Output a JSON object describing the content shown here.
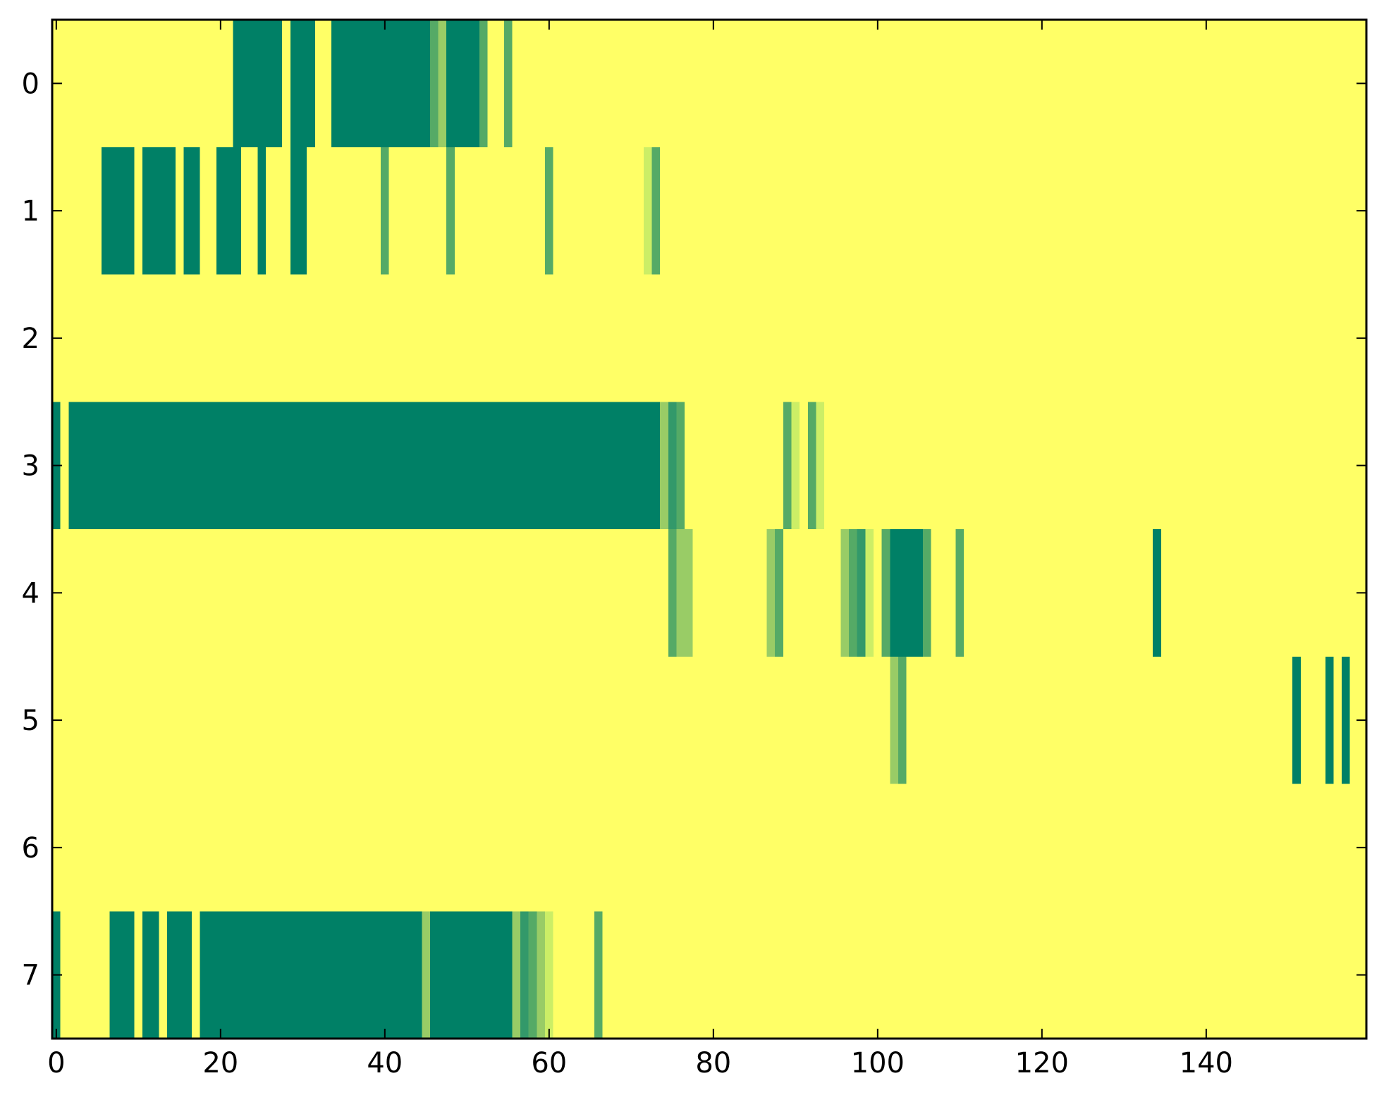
{
  "chart_data": {
    "type": "heatmap",
    "title": "",
    "xlabel": "",
    "ylabel": "",
    "xlim": [
      -0.5,
      159.5
    ],
    "ylim": [
      7.5,
      -0.5
    ],
    "x_ticks": [
      0,
      20,
      40,
      60,
      80,
      100,
      120,
      140
    ],
    "y_ticks": [
      0,
      1,
      2,
      3,
      4,
      5,
      6,
      7
    ],
    "x_tick_labels": [
      "0",
      "20",
      "40",
      "60",
      "80",
      "100",
      "120",
      "140"
    ],
    "y_tick_labels": [
      "0",
      "1",
      "2",
      "3",
      "4",
      "5",
      "6",
      "7"
    ],
    "n_rows": 8,
    "n_cols": 160,
    "colormap": "summer_r",
    "background_value": 0,
    "colors": {
      "background": "#ffff66",
      "1.0": "#008066",
      "0.8": "#33996a",
      "0.6": "#55aa66",
      "0.4": "#99cc66",
      "0.2": "#ccee66",
      "frame": "#000000"
    },
    "grid": false,
    "legend": "none",
    "rows": [
      {
        "row": 0,
        "segments": [
          {
            "start": 22,
            "end": 27,
            "value": 1.0
          },
          {
            "start": 29,
            "end": 31,
            "value": 1.0
          },
          {
            "start": 34,
            "end": 45,
            "value": 1.0
          },
          {
            "start": 46,
            "end": 46,
            "value": 0.6
          },
          {
            "start": 47,
            "end": 47,
            "value": 0.4
          },
          {
            "start": 48,
            "end": 51,
            "value": 1.0
          },
          {
            "start": 52,
            "end": 52,
            "value": 0.6
          },
          {
            "start": 55,
            "end": 55,
            "value": 0.6
          }
        ]
      },
      {
        "row": 1,
        "segments": [
          {
            "start": 6,
            "end": 9,
            "value": 1.0
          },
          {
            "start": 11,
            "end": 14,
            "value": 1.0
          },
          {
            "start": 16,
            "end": 17,
            "value": 1.0
          },
          {
            "start": 20,
            "end": 22,
            "value": 1.0
          },
          {
            "start": 25,
            "end": 25,
            "value": 1.0
          },
          {
            "start": 29,
            "end": 30,
            "value": 1.0
          },
          {
            "start": 40,
            "end": 40,
            "value": 0.6
          },
          {
            "start": 48,
            "end": 48,
            "value": 0.6
          },
          {
            "start": 60,
            "end": 60,
            "value": 0.6
          },
          {
            "start": 72,
            "end": 72,
            "value": 0.2
          },
          {
            "start": 73,
            "end": 73,
            "value": 0.6
          }
        ]
      },
      {
        "row": 2,
        "segments": []
      },
      {
        "row": 3,
        "segments": [
          {
            "start": 0,
            "end": 0,
            "value": 1.0
          },
          {
            "start": 2,
            "end": 73,
            "value": 1.0
          },
          {
            "start": 74,
            "end": 74,
            "value": 0.4
          },
          {
            "start": 75,
            "end": 75,
            "value": 0.8
          },
          {
            "start": 76,
            "end": 76,
            "value": 0.6
          },
          {
            "start": 89,
            "end": 89,
            "value": 0.6
          },
          {
            "start": 90,
            "end": 90,
            "value": 0.2
          },
          {
            "start": 92,
            "end": 92,
            "value": 0.6
          },
          {
            "start": 93,
            "end": 93,
            "value": 0.2
          }
        ]
      },
      {
        "row": 4,
        "segments": [
          {
            "start": 75,
            "end": 75,
            "value": 0.6
          },
          {
            "start": 76,
            "end": 77,
            "value": 0.4
          },
          {
            "start": 87,
            "end": 87,
            "value": 0.4
          },
          {
            "start": 88,
            "end": 88,
            "value": 0.6
          },
          {
            "start": 96,
            "end": 96,
            "value": 0.4
          },
          {
            "start": 97,
            "end": 97,
            "value": 0.6
          },
          {
            "start": 98,
            "end": 98,
            "value": 0.8
          },
          {
            "start": 99,
            "end": 99,
            "value": 0.2
          },
          {
            "start": 101,
            "end": 101,
            "value": 0.6
          },
          {
            "start": 102,
            "end": 105,
            "value": 1.0
          },
          {
            "start": 106,
            "end": 106,
            "value": 0.6
          },
          {
            "start": 110,
            "end": 110,
            "value": 0.6
          },
          {
            "start": 134,
            "end": 134,
            "value": 1.0
          }
        ]
      },
      {
        "row": 5,
        "segments": [
          {
            "start": 102,
            "end": 102,
            "value": 0.4
          },
          {
            "start": 103,
            "end": 103,
            "value": 0.6
          },
          {
            "start": 151,
            "end": 151,
            "value": 1.0
          },
          {
            "start": 155,
            "end": 155,
            "value": 1.0
          },
          {
            "start": 157,
            "end": 157,
            "value": 1.0
          }
        ]
      },
      {
        "row": 6,
        "segments": []
      },
      {
        "row": 7,
        "segments": [
          {
            "start": 0,
            "end": 0,
            "value": 1.0
          },
          {
            "start": 7,
            "end": 9,
            "value": 1.0
          },
          {
            "start": 11,
            "end": 12,
            "value": 1.0
          },
          {
            "start": 14,
            "end": 16,
            "value": 1.0
          },
          {
            "start": 18,
            "end": 44,
            "value": 1.0
          },
          {
            "start": 45,
            "end": 45,
            "value": 0.4
          },
          {
            "start": 46,
            "end": 55,
            "value": 1.0
          },
          {
            "start": 56,
            "end": 56,
            "value": 0.4
          },
          {
            "start": 57,
            "end": 57,
            "value": 0.8
          },
          {
            "start": 58,
            "end": 58,
            "value": 0.6
          },
          {
            "start": 59,
            "end": 59,
            "value": 0.4
          },
          {
            "start": 60,
            "end": 60,
            "value": 0.2
          },
          {
            "start": 66,
            "end": 66,
            "value": 0.6
          }
        ]
      }
    ]
  }
}
